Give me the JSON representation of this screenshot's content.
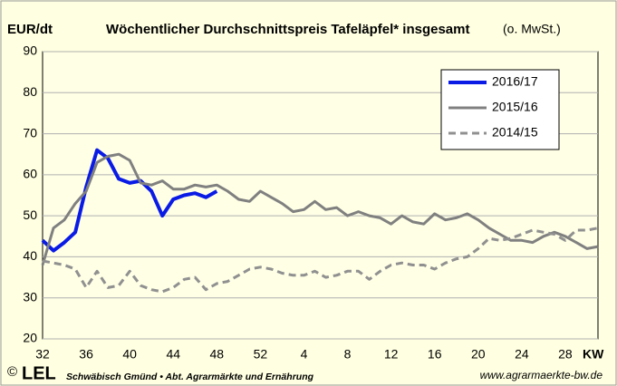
{
  "chart_data": {
    "type": "line",
    "ylabel": "EUR/dt",
    "title": "Wöchentlicher Durchschnittspreis Tafeläpfel* insgesamt",
    "title_note": "(o. MwSt.)",
    "xlabel": "KW",
    "categories": [
      32,
      null,
      null,
      null,
      36,
      null,
      null,
      null,
      40,
      null,
      null,
      null,
      44,
      null,
      null,
      null,
      48,
      null,
      null,
      null,
      52,
      null,
      null,
      null,
      4,
      null,
      null,
      null,
      8,
      null,
      null,
      null,
      12,
      null,
      null,
      null,
      16,
      null,
      null,
      null,
      20,
      null,
      null,
      null,
      24,
      null,
      null,
      null,
      28,
      null,
      null,
      null
    ],
    "ylim": [
      20,
      90
    ],
    "yticks": [
      20,
      30,
      40,
      50,
      60,
      70,
      80,
      90
    ],
    "grid": true,
    "legend": "upper right",
    "series": [
      {
        "name": "2016/17",
        "color": "#0a1be6",
        "width": 4,
        "dashed": false,
        "values": [
          44,
          41.5,
          43.5,
          46,
          57,
          66,
          64,
          59,
          58,
          58.5,
          56,
          50,
          54,
          55,
          55.5,
          54.5,
          56,
          null,
          null,
          null,
          null,
          null,
          null,
          null,
          null,
          null,
          null,
          null,
          null,
          null,
          null,
          null,
          null,
          null,
          null,
          null,
          null,
          null,
          null,
          null,
          null,
          null,
          null,
          null,
          null,
          null,
          null,
          null,
          null,
          null,
          null,
          null
        ]
      },
      {
        "name": "2015/16",
        "color": "#808080",
        "width": 3,
        "dashed": false,
        "values": [
          38,
          47,
          49,
          53,
          56,
          63,
          64.5,
          65,
          63.5,
          58,
          57.5,
          58.5,
          56.5,
          56.5,
          57.5,
          57,
          57.5,
          56,
          54,
          53.5,
          56,
          54.5,
          53,
          51,
          51.5,
          53.5,
          51.5,
          52,
          50,
          51,
          50,
          49.5,
          48,
          50,
          48.5,
          48,
          50.5,
          49,
          49.5,
          50.5,
          49,
          47,
          45.5,
          44,
          44,
          43.5,
          45,
          46,
          45,
          43.5,
          42,
          42.5
        ]
      },
      {
        "name": "2014/15",
        "color": "#909090",
        "width": 3,
        "dashed": true,
        "values": [
          39,
          38.5,
          38,
          37,
          32.5,
          36.5,
          32.5,
          33,
          36.5,
          33,
          32,
          31.5,
          32.5,
          34.5,
          35,
          32,
          33.5,
          34,
          35.5,
          37,
          37.5,
          37,
          36,
          35.5,
          35.5,
          36.5,
          35,
          35.5,
          36.5,
          36.5,
          34.5,
          36.5,
          38,
          38.5,
          38,
          38,
          37,
          38.5,
          39.5,
          40,
          42,
          44.5,
          44,
          44.5,
          45.5,
          46.5,
          46,
          45.5,
          44,
          46.5,
          46.5,
          47
        ]
      }
    ]
  },
  "footer": {
    "copyright": "©",
    "logo": "LEL",
    "org": "Schwäbisch Gmünd • Abt. Agrarmärkte und Ernährung",
    "url": "www.agrarmaerkte-bw.de"
  }
}
